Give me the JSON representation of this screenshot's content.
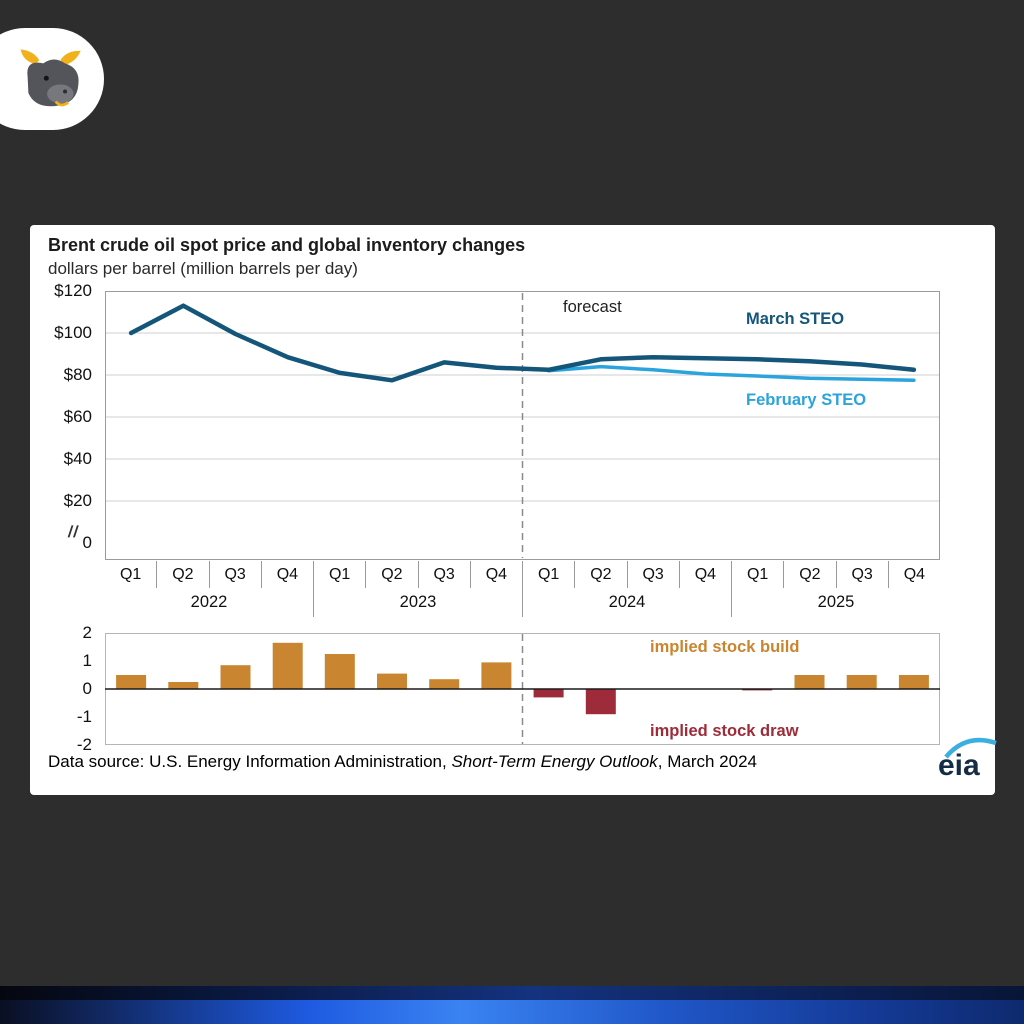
{
  "colors": {
    "page_background": "#2d2d2d",
    "march_line": "#14567a",
    "february_line": "#2ba3dd",
    "stock_build": "#c9852f",
    "stock_draw": "#9e2b39"
  },
  "branding": {
    "bull_logo": "bull-logo"
  },
  "card": {
    "title": "Brent crude oil spot price and global inventory changes",
    "subtitle": "dollars per barrel (million barrels per day)",
    "axis_break": "//",
    "annotations": {
      "forecast": "forecast",
      "march_steo": "March STEO",
      "february_steo": "February STEO",
      "stock_build": "implied stock build",
      "stock_draw": "implied stock draw"
    },
    "footer": {
      "prefix": "Data source: U.S. Energy Information Administration, ",
      "italic": "Short-Term Energy Outlook",
      "suffix": ", March 2024"
    },
    "eia_logo_text": "eia"
  },
  "axis": {
    "quarters": [
      "Q1",
      "Q2",
      "Q3",
      "Q4",
      "Q1",
      "Q2",
      "Q3",
      "Q4",
      "Q1",
      "Q2",
      "Q3",
      "Q4",
      "Q1",
      "Q2",
      "Q3",
      "Q4"
    ],
    "years": [
      "2022",
      "2023",
      "2024",
      "2025"
    ]
  },
  "chart_data": [
    {
      "type": "line",
      "ylabel": "dollars per barrel",
      "ylim": [
        0,
        120
      ],
      "axis_break_between": [
        20,
        0
      ],
      "grid": true,
      "yticks": [
        {
          "label": "$120",
          "value": 120
        },
        {
          "label": "$100",
          "value": 100
        },
        {
          "label": "$80",
          "value": 80
        },
        {
          "label": "$60",
          "value": 60
        },
        {
          "label": "$40",
          "value": 40
        },
        {
          "label": "$20",
          "value": 20
        },
        {
          "label": "0",
          "value": 0
        }
      ],
      "x": [
        "2022 Q1",
        "2022 Q2",
        "2022 Q3",
        "2022 Q4",
        "2023 Q1",
        "2023 Q2",
        "2023 Q3",
        "2023 Q4",
        "2024 Q1",
        "2024 Q2",
        "2024 Q3",
        "2024 Q4",
        "2025 Q1",
        "2025 Q2",
        "2025 Q3",
        "2025 Q4"
      ],
      "forecast_start_index": 8,
      "series": [
        {
          "name": "March STEO",
          "color": "#14567a",
          "values": [
            100,
            113,
            99.5,
            88.5,
            81,
            77.5,
            86,
            83.5,
            82.5,
            87.5,
            88.5,
            88,
            87.5,
            86.5,
            85,
            82.5
          ]
        },
        {
          "name": "February STEO",
          "color": "#2ba3dd",
          "values": [
            null,
            null,
            null,
            null,
            null,
            null,
            null,
            null,
            82,
            84,
            82.5,
            80.5,
            79.5,
            78.5,
            78,
            77.5
          ]
        }
      ]
    },
    {
      "type": "bar",
      "ylabel": "million barrels per day",
      "ylim": [
        -2,
        2
      ],
      "grid": false,
      "yticks": [
        {
          "label": "2",
          "value": 2
        },
        {
          "label": "1",
          "value": 1
        },
        {
          "label": "0",
          "value": 0
        },
        {
          "label": "-1",
          "value": -1
        },
        {
          "label": "-2",
          "value": -2
        }
      ],
      "x": [
        "2022 Q1",
        "2022 Q2",
        "2022 Q3",
        "2022 Q4",
        "2023 Q1",
        "2023 Q2",
        "2023 Q3",
        "2023 Q4",
        "2024 Q1",
        "2024 Q2",
        "2024 Q3",
        "2024 Q4",
        "2025 Q1",
        "2025 Q2",
        "2025 Q3",
        "2025 Q4"
      ],
      "build_color": "#c9852f",
      "draw_color": "#9e2b39",
      "values": [
        0.5,
        0.25,
        0.85,
        1.65,
        1.25,
        0.55,
        0.35,
        0.95,
        -0.3,
        -0.9,
        0,
        0,
        -0.05,
        0.5,
        0.5,
        0.5
      ]
    }
  ]
}
